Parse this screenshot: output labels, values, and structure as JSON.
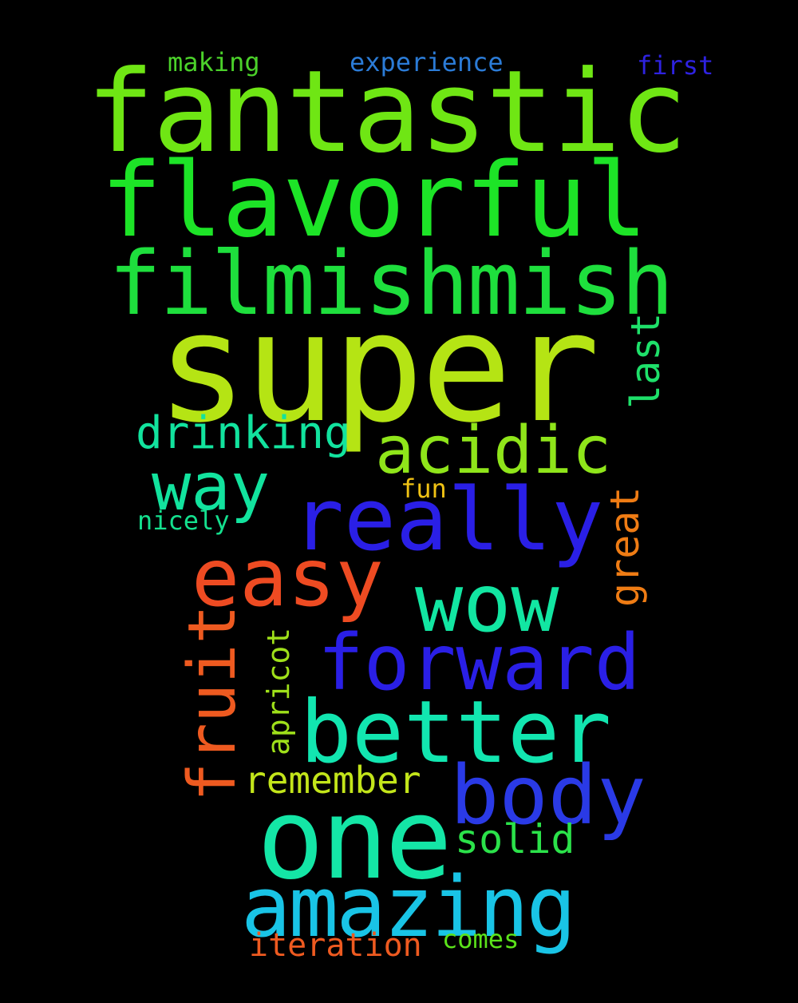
{
  "words": {
    "making": {
      "text": "making",
      "color": "#4BD12A"
    },
    "experience": {
      "text": "experience",
      "color": "#2B7BD6"
    },
    "first": {
      "text": "first",
      "color": "#2E22E0"
    },
    "fantastic": {
      "text": "fantastic",
      "color": "#6FE614"
    },
    "flavorful": {
      "text": "flavorful",
      "color": "#1DE427"
    },
    "filmishmish": {
      "text": "filmishmish",
      "color": "#1EDF3D"
    },
    "super": {
      "text": "super",
      "color": "#B5E414"
    },
    "last": {
      "text": "last",
      "color": "#1EE06A"
    },
    "drinking": {
      "text": "drinking",
      "color": "#12E39E"
    },
    "acidic": {
      "text": "acidic",
      "color": "#8FE51A"
    },
    "way": {
      "text": "way",
      "color": "#12E39E"
    },
    "fun": {
      "text": "fun",
      "color": "#F0C214"
    },
    "really": {
      "text": "really",
      "color": "#2A1FE6"
    },
    "great": {
      "text": "great",
      "color": "#EF7C14"
    },
    "nicely": {
      "text": "nicely",
      "color": "#14E08E"
    },
    "easy": {
      "text": "easy",
      "color": "#EE4B22"
    },
    "wow": {
      "text": "wow",
      "color": "#12E6A2"
    },
    "fruit": {
      "text": "fruit",
      "color": "#EE5A20"
    },
    "apricot": {
      "text": "apricot",
      "color": "#9FE01A"
    },
    "forward": {
      "text": "forward",
      "color": "#2A1FE6"
    },
    "better": {
      "text": "better",
      "color": "#12E6B0"
    },
    "remember": {
      "text": "remember",
      "color": "#C3E51A"
    },
    "body": {
      "text": "body",
      "color": "#2A3AE6"
    },
    "one": {
      "text": "one",
      "color": "#14E6A6"
    },
    "solid": {
      "text": "solid",
      "color": "#2BE24A"
    },
    "amazing": {
      "text": "amazing",
      "color": "#19C4E6"
    },
    "iteration": {
      "text": "iteration",
      "color": "#EE5A20"
    },
    "comes": {
      "text": "comes",
      "color": "#5BE21A"
    }
  }
}
